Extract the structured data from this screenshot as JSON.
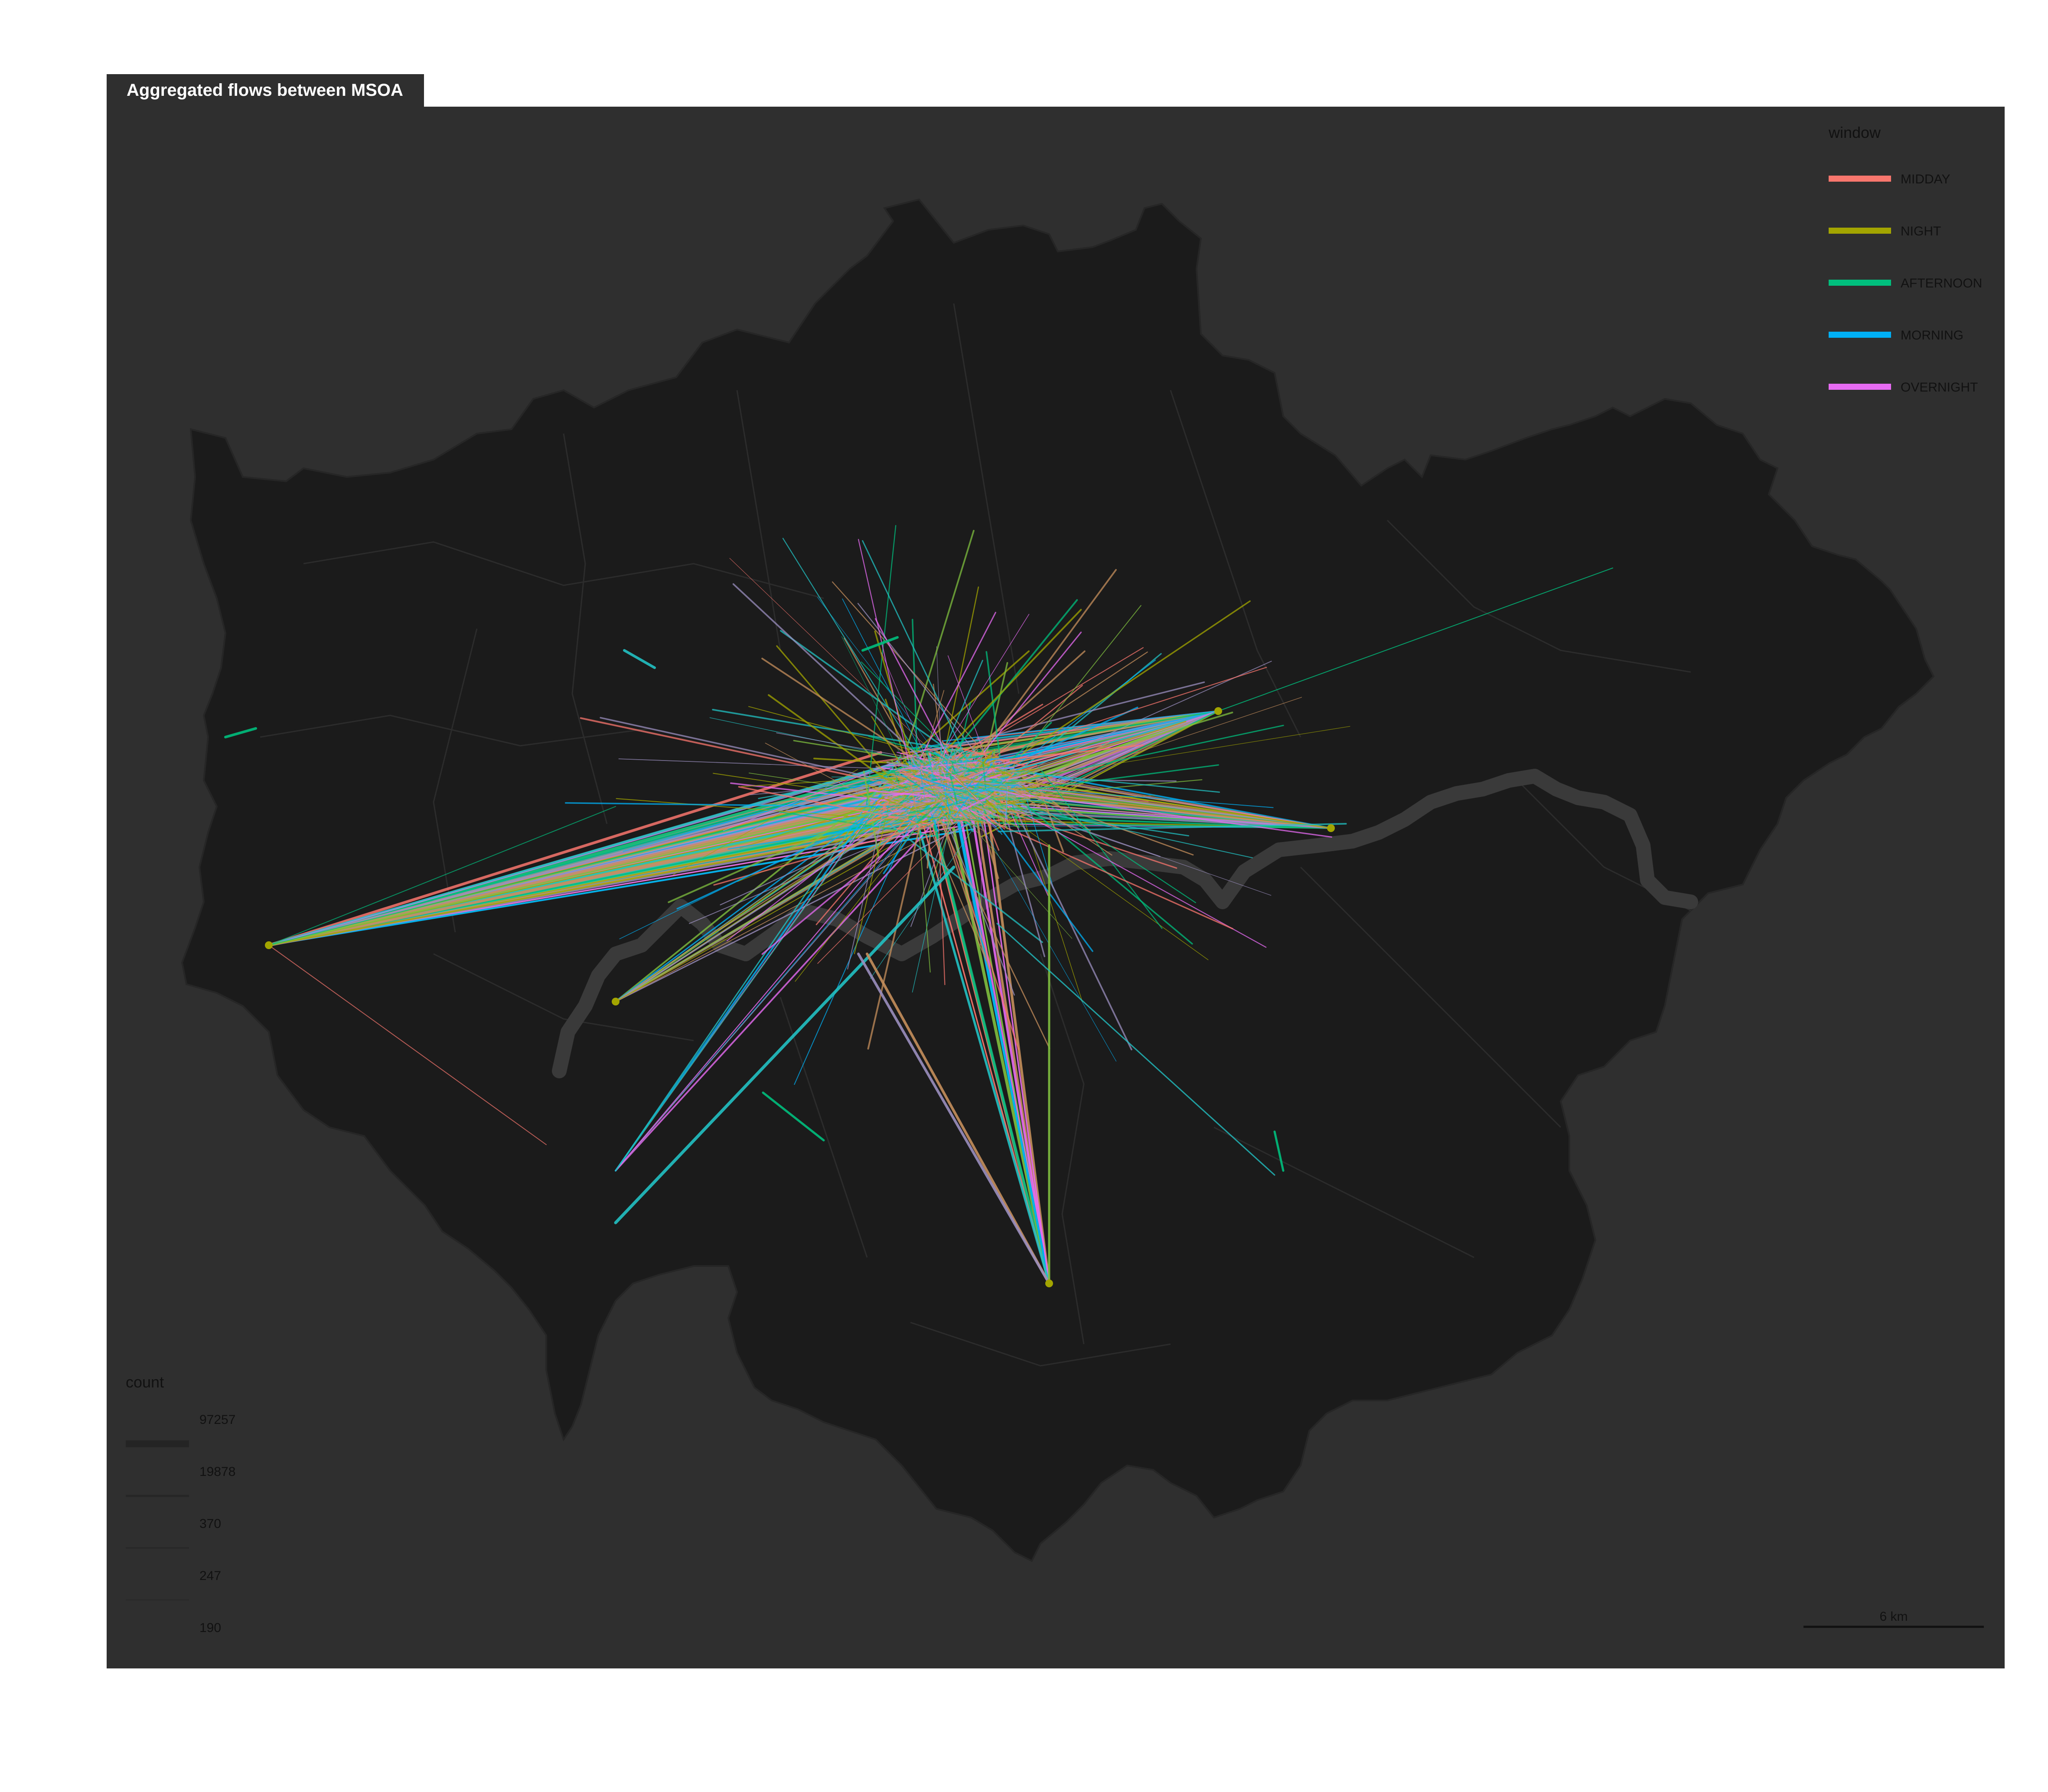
{
  "map": {
    "title": "Aggregated flows between MSOA",
    "colors": {
      "frame": "#2f2f2f",
      "landmass": "#1b1b1b",
      "boundaries": "#2c2c2c",
      "river": "#3a3a3a",
      "page": "#ffffff"
    }
  },
  "window_legend": {
    "title": "window",
    "items": [
      {
        "label": "MIDDAY",
        "color": "#f8766d"
      },
      {
        "label": "NIGHT",
        "color": "#a3a500"
      },
      {
        "label": "AFTERNOON",
        "color": "#00bf7d"
      },
      {
        "label": "MORNING",
        "color": "#00b0f6"
      },
      {
        "label": "OVERNIGHT",
        "color": "#e76bf3"
      }
    ]
  },
  "count_legend": {
    "title": "count",
    "items": [
      {
        "label": "97257",
        "value": 97257
      },
      {
        "label": "19878",
        "value": 19878
      },
      {
        "label": "370",
        "value": 370
      },
      {
        "label": "247",
        "value": 247
      },
      {
        "label": "190",
        "value": 190
      }
    ]
  },
  "scale_bar": {
    "label": "6 km"
  }
}
